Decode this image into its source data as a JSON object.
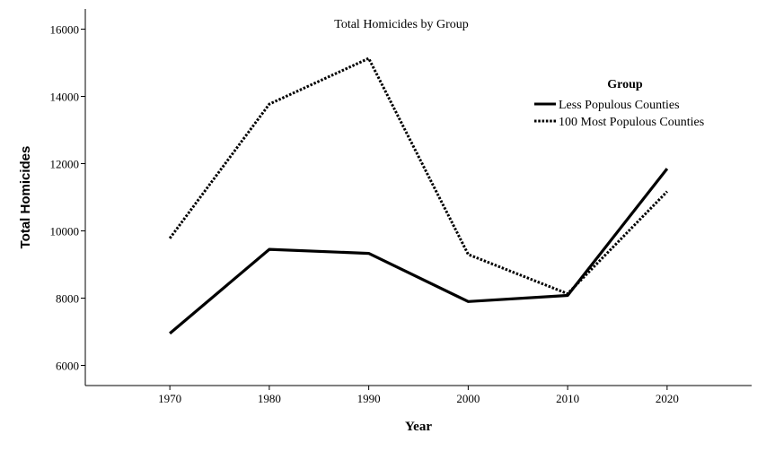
{
  "chart_data": {
    "type": "line",
    "title": "Total Homicides by Group",
    "xlabel": "Year",
    "ylabel": "Total Homicides",
    "x": [
      1970,
      1980,
      1990,
      2000,
      2010,
      2020
    ],
    "xlim": [
      1961.5,
      2028.5
    ],
    "ylim": [
      5400,
      16600
    ],
    "yticks": [
      6000,
      8000,
      10000,
      12000,
      14000,
      16000
    ],
    "legend": {
      "title": "Group",
      "placement": "top-right"
    },
    "grid": false,
    "series": [
      {
        "name": "Less Populous Counties",
        "style": "solid",
        "color": "#000000",
        "values": [
          6950,
          9450,
          9330,
          7900,
          8080,
          11850
        ]
      },
      {
        "name": "100 Most Populous Counties",
        "style": "dotted",
        "color": "#000000",
        "values": [
          9780,
          13770,
          15130,
          9300,
          8130,
          11170
        ]
      }
    ]
  }
}
